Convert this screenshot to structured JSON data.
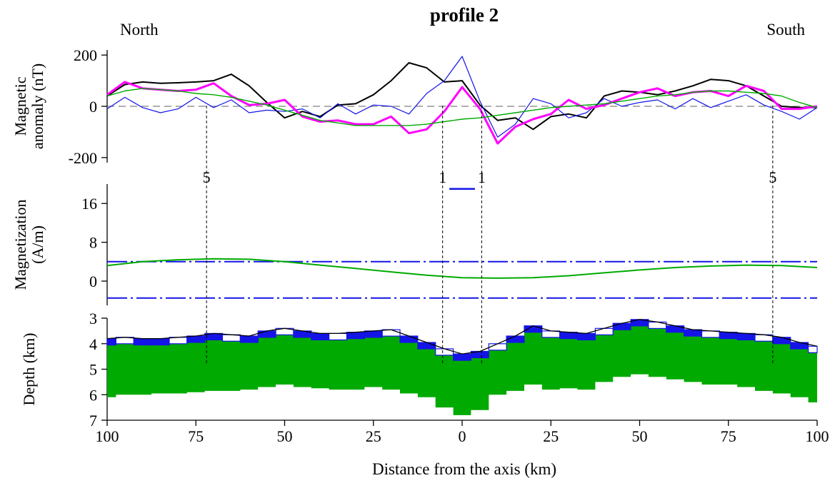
{
  "title": "profile 2",
  "left_label": "North",
  "right_label": "South",
  "xlabel": "Distance from the axis (km)",
  "colors": {
    "black": "#000000",
    "blue": "#1414e6",
    "magenta": "#ff00ff",
    "green": "#00aa00",
    "dashed": "#808080"
  },
  "chart_data": [
    {
      "type": "line",
      "panel": "magnetic-anomaly",
      "ylabel": "Magnetic anomaly (nT)",
      "ylabel_lines": [
        "Magnetic",
        "anomaly (nT)"
      ],
      "ylim": [
        -220,
        220
      ],
      "yticks": [
        200,
        0,
        -200
      ],
      "ytick_labels": [
        "200",
        "0",
        "-200"
      ],
      "x": [
        -100,
        -95,
        -90,
        -85,
        -80,
        -75,
        -70,
        -65,
        -60,
        -55,
        -50,
        -45,
        -40,
        -35,
        -30,
        -25,
        -20,
        -15,
        -10,
        -5,
        0,
        5,
        10,
        15,
        20,
        25,
        30,
        35,
        40,
        45,
        50,
        55,
        60,
        65,
        70,
        75,
        80,
        85,
        90,
        95,
        100
      ],
      "series": [
        {
          "color": "black",
          "values": [
            40,
            85,
            95,
            90,
            92,
            95,
            100,
            125,
            80,
            15,
            -45,
            -20,
            -40,
            5,
            10,
            45,
            100,
            170,
            150,
            95,
            100,
            5,
            -55,
            -45,
            -90,
            -40,
            -30,
            -45,
            40,
            60,
            55,
            45,
            60,
            80,
            105,
            100,
            80,
            40,
            0,
            -5,
            -5
          ]
        },
        {
          "color": "blue",
          "values": [
            -10,
            35,
            -5,
            -25,
            -10,
            35,
            -5,
            25,
            -25,
            -15,
            -20,
            -10,
            -45,
            10,
            -30,
            5,
            0,
            -30,
            50,
            100,
            195,
            20,
            -120,
            -70,
            30,
            10,
            -45,
            -25,
            30,
            0,
            15,
            25,
            -10,
            30,
            -5,
            20,
            45,
            5,
            -20,
            -50,
            -5
          ]
        },
        {
          "color": "magenta",
          "values": [
            45,
            95,
            70,
            65,
            60,
            65,
            90,
            40,
            5,
            10,
            25,
            -40,
            -60,
            -55,
            -70,
            -70,
            -40,
            -105,
            -90,
            -20,
            75,
            -10,
            -145,
            -80,
            -50,
            -30,
            25,
            -10,
            5,
            30,
            55,
            70,
            40,
            55,
            60,
            40,
            80,
            60,
            -10,
            -10,
            0
          ]
        },
        {
          "color": "green",
          "values": [
            40,
            60,
            70,
            65,
            60,
            50,
            45,
            35,
            20,
            5,
            -15,
            -35,
            -55,
            -65,
            -75,
            -75,
            -75,
            -75,
            -70,
            -60,
            -50,
            -45,
            -35,
            -25,
            -15,
            -5,
            0,
            5,
            10,
            20,
            30,
            40,
            45,
            55,
            60,
            60,
            55,
            50,
            40,
            15,
            -5
          ]
        }
      ],
      "reference_line": 0
    },
    {
      "type": "line",
      "panel": "magnetization",
      "ylabel": "Magnetization (A/m)",
      "ylabel_lines": [
        "Magnetization",
        "(A/m)"
      ],
      "ylim": [
        -5,
        20
      ],
      "yticks": [
        16,
        8,
        0
      ],
      "ytick_labels": [
        "16",
        "8",
        "0"
      ],
      "x": [
        -100,
        -90,
        -80,
        -70,
        -60,
        -50,
        -40,
        -30,
        -20,
        -10,
        0,
        10,
        20,
        30,
        40,
        50,
        60,
        70,
        80,
        90,
        100
      ],
      "series": [
        {
          "color": "green",
          "values": [
            3.2,
            4.0,
            4.4,
            4.6,
            4.5,
            4.0,
            3.3,
            2.6,
            1.9,
            1.2,
            0.7,
            0.6,
            0.7,
            1.1,
            1.7,
            2.3,
            2.8,
            3.1,
            3.3,
            3.2,
            2.8
          ]
        }
      ],
      "dashdot_levels": [
        4,
        -3.5
      ],
      "axis_block": {
        "x": [
          -2,
          2
        ],
        "y": 19,
        "color": "blue"
      },
      "chron_labels": [
        {
          "x": -72,
          "text": "5"
        },
        {
          "x": -5.5,
          "text": "1"
        },
        {
          "x": 5.5,
          "text": "1"
        },
        {
          "x": 87.5,
          "text": "5"
        }
      ]
    },
    {
      "type": "area",
      "panel": "depth",
      "ylabel": "Depth (km)",
      "ylim": [
        7,
        3
      ],
      "yticks": [
        3,
        4,
        5,
        6,
        7
      ],
      "ytick_labels": [
        "3",
        "4",
        "5",
        "6",
        "7"
      ],
      "x": [
        -100,
        -95,
        -90,
        -85,
        -80,
        -75,
        -70,
        -65,
        -60,
        -55,
        -50,
        -45,
        -40,
        -35,
        -30,
        -25,
        -20,
        -15,
        -10,
        -5,
        0,
        5,
        10,
        15,
        20,
        25,
        30,
        35,
        40,
        45,
        50,
        55,
        60,
        65,
        70,
        75,
        80,
        85,
        90,
        95,
        100
      ],
      "top": [
        3.8,
        3.75,
        3.8,
        3.8,
        3.75,
        3.7,
        3.6,
        3.65,
        3.7,
        3.5,
        3.4,
        3.5,
        3.6,
        3.6,
        3.55,
        3.5,
        3.45,
        3.7,
        3.95,
        4.2,
        4.4,
        4.3,
        4.0,
        3.7,
        3.3,
        3.5,
        3.55,
        3.6,
        3.4,
        3.2,
        3.05,
        3.15,
        3.3,
        3.45,
        3.5,
        3.55,
        3.6,
        3.65,
        3.75,
        3.95,
        4.1
      ],
      "bottom": [
        6.1,
        6.0,
        6.0,
        5.95,
        5.95,
        5.9,
        5.85,
        5.85,
        5.8,
        5.7,
        5.6,
        5.7,
        5.75,
        5.8,
        5.8,
        5.7,
        5.8,
        5.95,
        6.1,
        6.5,
        6.8,
        6.6,
        6.0,
        5.85,
        5.6,
        5.8,
        5.75,
        5.8,
        5.5,
        5.3,
        5.2,
        5.3,
        5.4,
        5.5,
        5.6,
        5.6,
        5.7,
        5.85,
        5.95,
        6.1,
        6.3
      ],
      "xticks": [
        -100,
        -75,
        -50,
        -25,
        0,
        25,
        50,
        75,
        100
      ],
      "xtick_labels": [
        "100",
        "75",
        "50",
        "25",
        "0",
        "25",
        "50",
        "75",
        "100"
      ]
    }
  ],
  "reversal_lines_x": [
    -72,
    -5.5,
    5.5,
    87.5
  ]
}
